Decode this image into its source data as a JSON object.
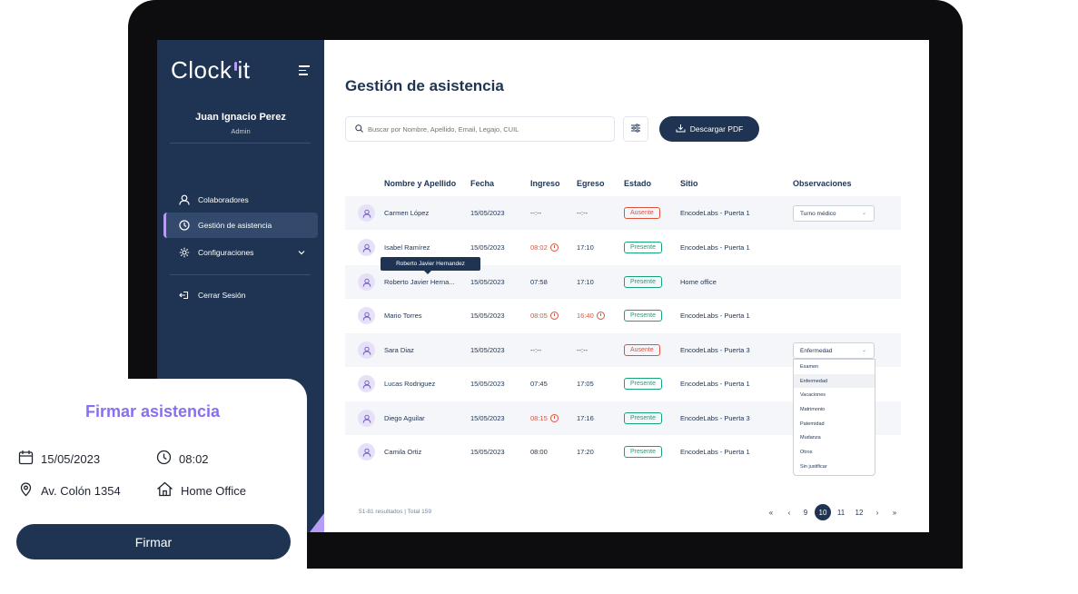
{
  "app": {
    "logo": "Clock it"
  },
  "user": {
    "name": "Juan Ignacio Perez",
    "role": "Admin"
  },
  "sidebar": {
    "items": [
      {
        "label": "Colaboradores",
        "icon": "user-icon"
      },
      {
        "label": "Gestión de asistencia",
        "icon": "clock-icon",
        "active": true
      },
      {
        "label": "Configuraciones",
        "icon": "gear-icon"
      }
    ],
    "logout": "Cerrar Sesión"
  },
  "main": {
    "title": "Gestión de asistencia",
    "search_placeholder": "Buscar por Nombre, Apellido, Email, Legajo, CUIL",
    "pdf_button": "Descargar PDF"
  },
  "table": {
    "headers": [
      "Nombre y Apellido",
      "Fecha",
      "Ingreso",
      "Egreso",
      "Estado",
      "Sitio",
      "Observaciones"
    ],
    "rows": [
      {
        "name": "Carmen López",
        "date": "15/05/2023",
        "in": "--:--",
        "out": "--:--",
        "status": "Ausente",
        "site": "EncodeLabs - Puerta 1",
        "obs": "Turno médico"
      },
      {
        "name": "Isabel Ramírez",
        "date": "15/05/2023",
        "in": "08:02",
        "out": "17:10",
        "status": "Presente",
        "site": "EncodeLabs - Puerta 1",
        "obs": ""
      },
      {
        "name": "Roberto Javier Herna...",
        "date": "15/05/2023",
        "in": "07:58",
        "out": "17:10",
        "status": "Presente",
        "site": "Home office",
        "obs": ""
      },
      {
        "name": "Mario Torres",
        "date": "15/05/2023",
        "in": "08:05",
        "out": "16:40",
        "status": "Presente",
        "site": "EncodeLabs - Puerta 1",
        "obs": ""
      },
      {
        "name": "Sara Diaz",
        "date": "15/05/2023",
        "in": "--:--",
        "out": "--:--",
        "status": "Ausente",
        "site": "EncodeLabs - Puerta 3",
        "obs": "Enfermedad"
      },
      {
        "name": "Lucas Rodriguez",
        "date": "15/05/2023",
        "in": "07:45",
        "out": "17:05",
        "status": "Presente",
        "site": "EncodeLabs - Puerta 1",
        "obs": ""
      },
      {
        "name": "Diego Aguilar",
        "date": "15/05/2023",
        "in": "08:15",
        "out": "17:16",
        "status": "Presente",
        "site": "EncodeLabs - Puerta 3",
        "obs": ""
      },
      {
        "name": "Camila Ortiz",
        "date": "15/05/2023",
        "in": "08:00",
        "out": "17:20",
        "status": "Presente",
        "site": "EncodeLabs - Puerta 1",
        "obs": ""
      }
    ],
    "tooltip": "Roberto Javier Hernandez",
    "dropdown_options": [
      "Examen",
      "Enfermedad",
      "Vacaciones",
      "Matrimonio",
      "Paternidad",
      "Mudanza",
      "Otros",
      "Sin justificar"
    ]
  },
  "pagination": {
    "info": "51-81 resultados | Total 159",
    "first": "«",
    "prev": "‹",
    "pages": [
      "9",
      "10",
      "11",
      "12"
    ],
    "current": "10",
    "next": "›",
    "last": "»"
  },
  "card": {
    "title": "Firmar asistencia",
    "date": "15/05/2023",
    "time": "08:02",
    "address": "Av. Colón 1354",
    "mode": "Home Office",
    "button": "Firmar"
  },
  "colors": {
    "navy": "#1f3452",
    "accent": "#8a6ef2",
    "present": "#19a37a",
    "absent": "#e0523b"
  }
}
